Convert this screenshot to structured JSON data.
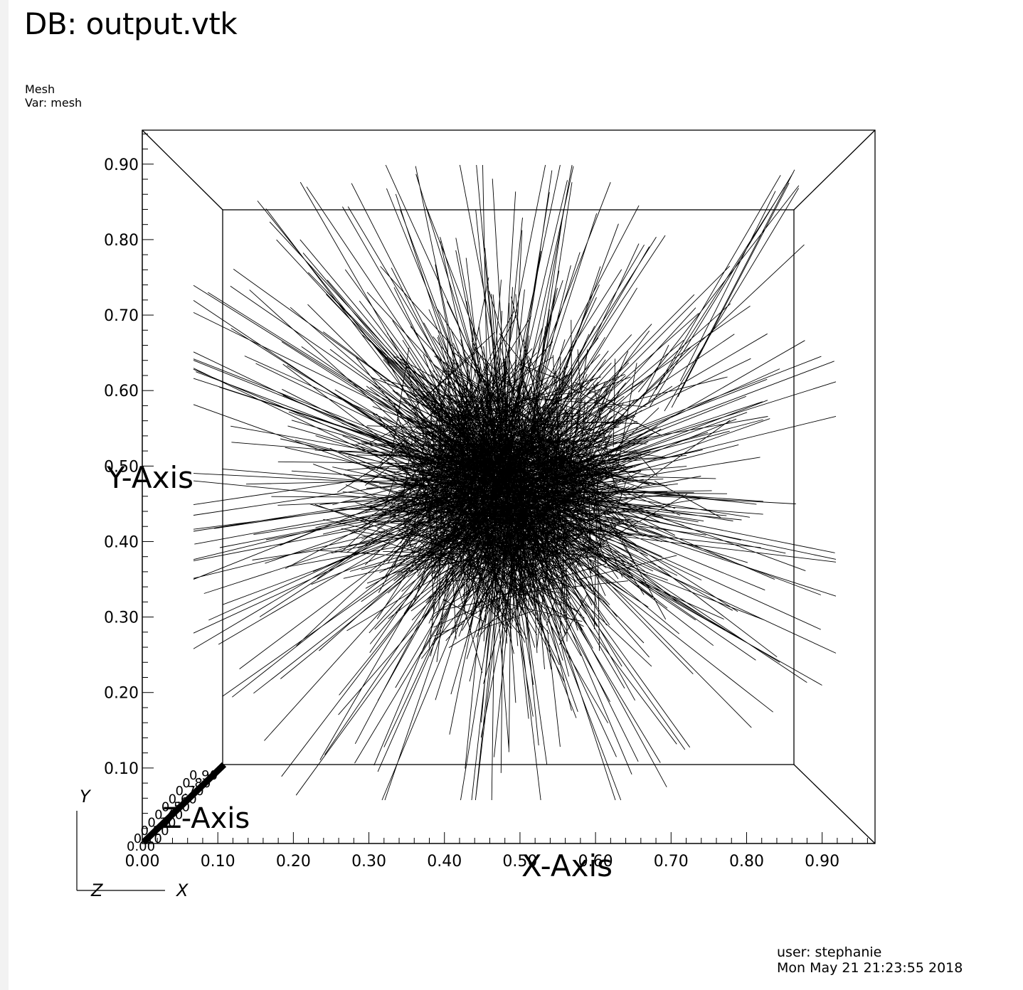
{
  "window": {
    "title": "DB: output.vtk"
  },
  "plot": {
    "type_label": "Mesh",
    "var_label": "Var: mesh"
  },
  "axes": {
    "x_title": "X-Axis",
    "y_title": "Y-Axis",
    "z_title": "Z-Axis",
    "x_ticks": [
      "0.00",
      "0.10",
      "0.20",
      "0.30",
      "0.40",
      "0.50",
      "0.60",
      "0.70",
      "0.80",
      "0.90"
    ],
    "y_ticks": [
      "0.10",
      "0.20",
      "0.30",
      "0.40",
      "0.50",
      "0.60",
      "0.70",
      "0.80",
      "0.90"
    ],
    "x_range": [
      0.0,
      0.97
    ],
    "y_range": [
      0.0,
      0.945
    ]
  },
  "triad": {
    "x_label": "X",
    "y_label": "Y",
    "z_label": "Z"
  },
  "footer": {
    "user": "user: stephanie",
    "timestamp": "Mon May 21 21:23:55 2018"
  },
  "colors": {
    "background": "#ffffff",
    "foreground": "#000000"
  }
}
